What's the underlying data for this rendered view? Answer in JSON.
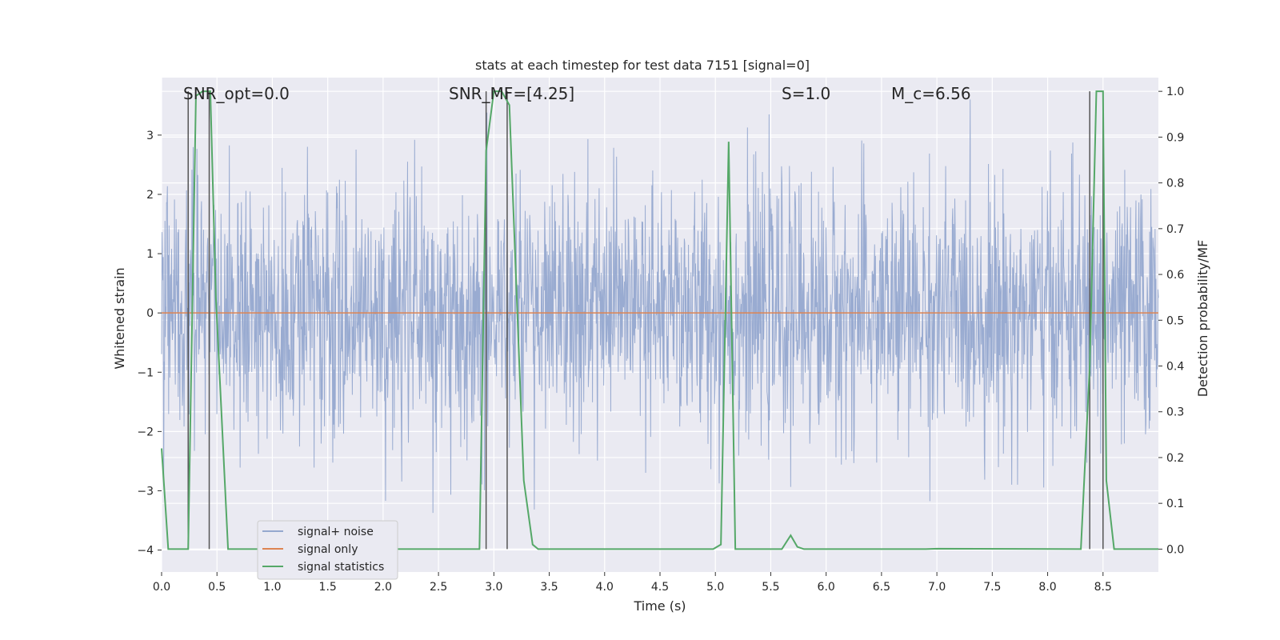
{
  "chart_data": {
    "type": "line",
    "title": "stats at each timestep for test data 7151 [signal=0]",
    "xlabel": "Time (s)",
    "ylabel": "Whitened strain",
    "ylabel_right": "Detection probability/MF",
    "xlim": [
      0,
      9.0
    ],
    "ylim": [
      -4.37,
      3.97
    ],
    "ylim_right": [
      -0.05,
      1.03
    ],
    "xticks": [
      0.0,
      0.5,
      1.0,
      1.5,
      2.0,
      2.5,
      3.0,
      3.5,
      4.0,
      4.5,
      5.0,
      5.5,
      6.0,
      6.5,
      7.0,
      7.5,
      8.0,
      8.5
    ],
    "xtick_labels": [
      "0.0",
      "0.5",
      "1.0",
      "1.5",
      "2.0",
      "2.5",
      "3.0",
      "3.5",
      "4.0",
      "4.5",
      "5.0",
      "5.5",
      "6.0",
      "6.5",
      "7.0",
      "7.5",
      "8.0",
      "8.5"
    ],
    "yticks": [
      -4,
      -3,
      -2,
      -1,
      0,
      1,
      2,
      3
    ],
    "ytick_labels": [
      "−4",
      "−3",
      "−2",
      "−1",
      "0",
      "1",
      "2",
      "3"
    ],
    "yticks_right": [
      0.0,
      0.1,
      0.2,
      0.3,
      0.4,
      0.5,
      0.6,
      0.7,
      0.8,
      0.9,
      1.0
    ],
    "ytick_labels_right": [
      "0.0",
      "0.1",
      "0.2",
      "0.3",
      "0.4",
      "0.5",
      "0.6",
      "0.7",
      "0.8",
      "0.9",
      "1.0"
    ],
    "annotations": [
      {
        "name": "snr-opt",
        "text": "SNR_opt=0.0"
      },
      {
        "name": "snr-mf",
        "text": "SNR_MF=[4.25]"
      },
      {
        "name": "s-value",
        "text": "S=1.0"
      },
      {
        "name": "mc-value",
        "text": "M_c=6.56"
      }
    ],
    "series": [
      {
        "name": "signal+ noise",
        "color": "#95a8cf",
        "axis": "left",
        "description": "noise, amplitude ~±2, peaks to about ±3.5"
      },
      {
        "name": "signal only",
        "color": "#dd8452",
        "axis": "left",
        "values_constant": 0
      },
      {
        "name": "signal statistics",
        "color": "#55a868",
        "axis": "right",
        "x": [
          0.0,
          0.06,
          0.24,
          0.31,
          0.37,
          0.44,
          0.49,
          0.55,
          0.6,
          2.6,
          2.87,
          2.93,
          3.0,
          3.07,
          3.14,
          3.27,
          3.35,
          3.4,
          4.98,
          5.05,
          5.12,
          5.18,
          5.6,
          5.68,
          5.74,
          5.8,
          6.9,
          7.0,
          8.3,
          8.38,
          8.44,
          8.5,
          8.53,
          8.6,
          9.0
        ],
        "y": [
          0.22,
          0.0,
          0.0,
          0.99,
          1.0,
          1.0,
          0.55,
          0.25,
          0.0,
          0.0,
          0.0,
          0.87,
          1.0,
          1.0,
          0.97,
          0.15,
          0.01,
          0.0,
          0.0,
          0.01,
          0.89,
          0.0,
          0.0,
          0.03,
          0.005,
          0.0,
          0.0,
          0.001,
          0.0,
          0.4,
          1.0,
          1.0,
          0.15,
          0.0,
          0.0
        ]
      }
    ],
    "vertical_markers": [
      0.24,
      0.43,
      2.93,
      3.12,
      8.38,
      8.5
    ],
    "legend": {
      "placement": "lower-left",
      "entries": [
        "signal+ noise",
        "signal only",
        "signal statistics"
      ]
    },
    "colors": {
      "background": "#eaeaf2",
      "grid": "#ffffff",
      "marker": "#555555"
    },
    "grid": true
  }
}
